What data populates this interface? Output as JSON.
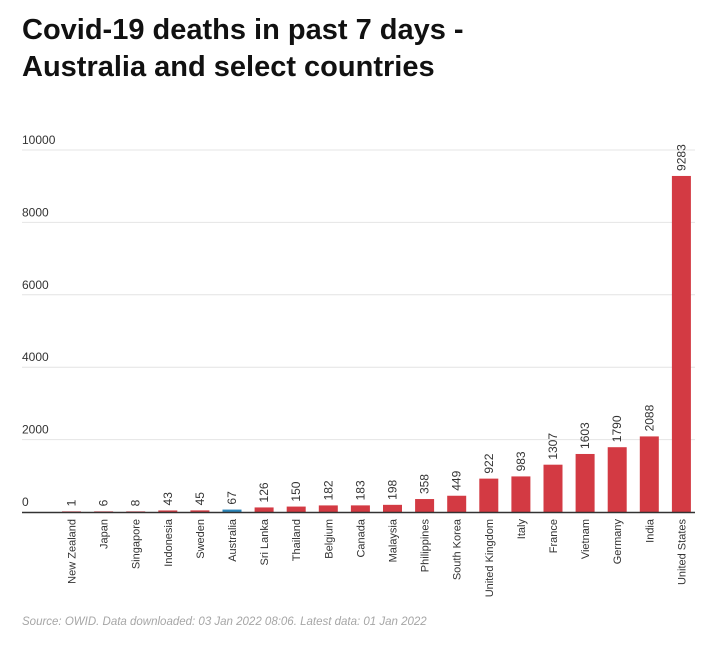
{
  "chart_data": {
    "type": "bar",
    "title": "Covid-19 deaths in past 7 days - Australia and select countries",
    "xlabel": "",
    "ylabel": "",
    "ylim": [
      0,
      10000
    ],
    "yticks": [
      "0",
      "2000",
      "4000",
      "6000",
      "8000",
      "10000"
    ],
    "grid": true,
    "legend": "none",
    "categories": [
      "New Zealand",
      "Japan",
      "Singapore",
      "Indonesia",
      "Sweden",
      "Australia",
      "Sri Lanka",
      "Thailand",
      "Belgium",
      "Canada",
      "Malaysia",
      "Philippines",
      "South Korea",
      "United Kingdom",
      "Italy",
      "France",
      "Vietnam",
      "Germany",
      "India",
      "United States"
    ],
    "values": [
      1,
      6,
      8,
      43,
      45,
      67,
      126,
      150,
      182,
      183,
      198,
      358,
      449,
      922,
      983,
      1307,
      1603,
      1790,
      2088,
      9283
    ],
    "highlight_category": "Australia",
    "colors": {
      "bar": "#d33a43",
      "highlight": "#2a86ba",
      "grid": "#e4e4e4",
      "baseline": "#333333",
      "text": "#333333"
    }
  },
  "source": "Source: OWID. Data downloaded: 03 Jan 2022 08:06. Latest data: 01 Jan 2022"
}
